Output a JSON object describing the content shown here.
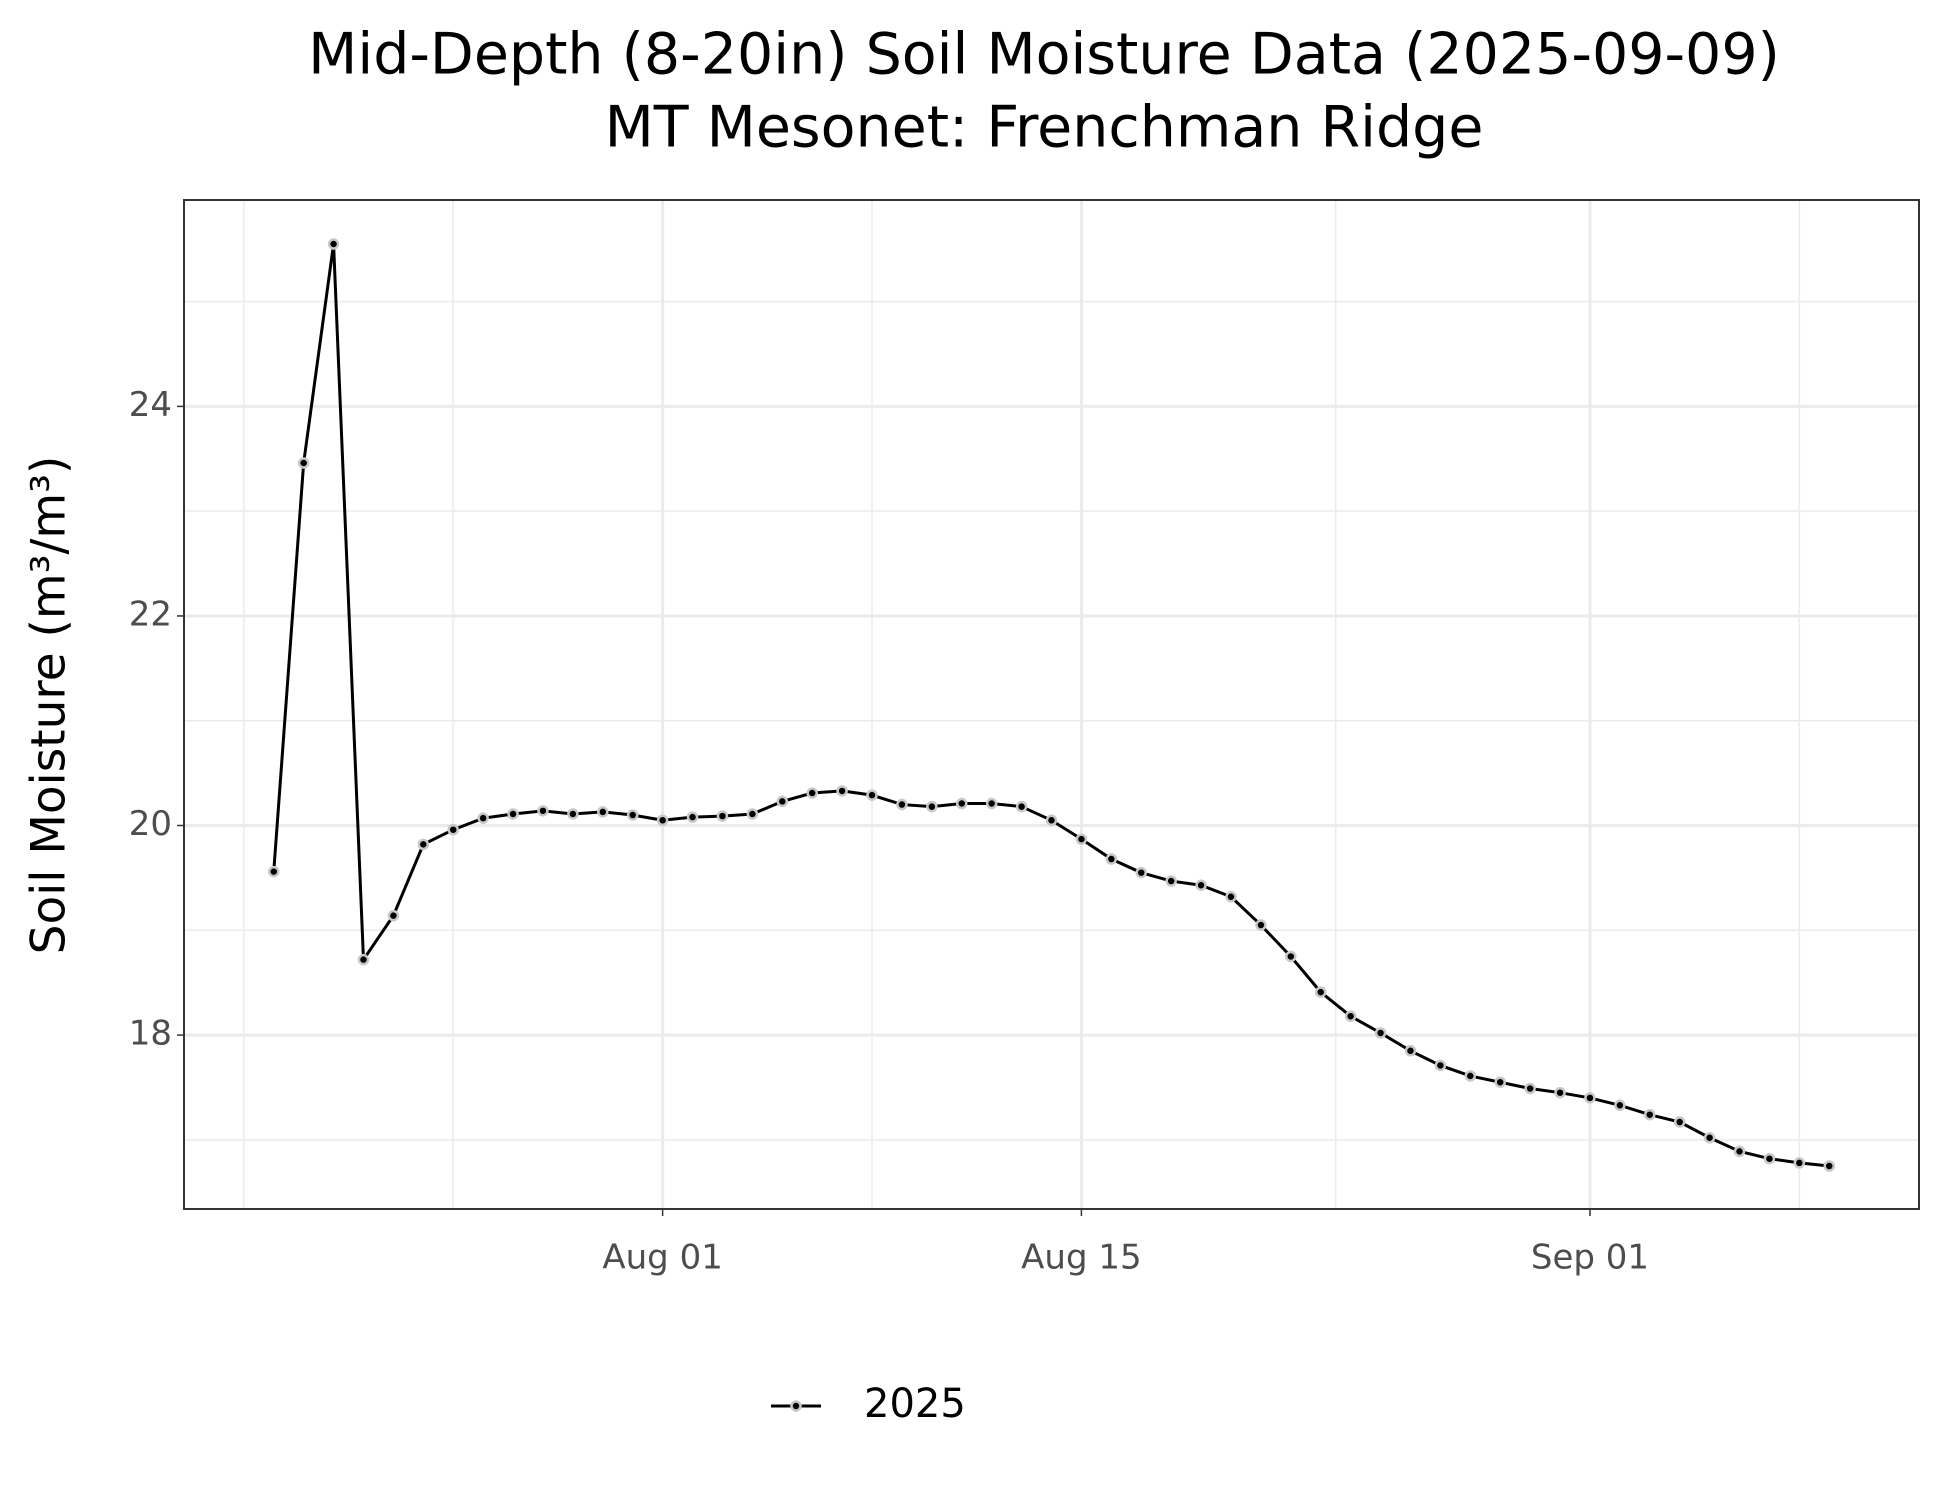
{
  "chart_data": {
    "type": "line",
    "title": "Mid-Depth (8-20in) Soil Moisture Data (2025-09-09)",
    "subtitle": "MT Mesonet: Frenchman Ridge",
    "y_label": "Soil Moisture (m³/m³)",
    "x": [
      "07-19",
      "07-20",
      "07-21",
      "07-22",
      "07-23",
      "07-24",
      "07-25",
      "07-26",
      "07-27",
      "07-28",
      "07-29",
      "07-30",
      "07-31",
      "08-01",
      "08-02",
      "08-03",
      "08-04",
      "08-05",
      "08-06",
      "08-07",
      "08-08",
      "08-09",
      "08-10",
      "08-11",
      "08-12",
      "08-13",
      "08-14",
      "08-15",
      "08-16",
      "08-17",
      "08-18",
      "08-19",
      "08-20",
      "08-21",
      "08-22",
      "08-23",
      "08-24",
      "08-25",
      "08-26",
      "08-27",
      "08-28",
      "08-29",
      "08-30",
      "08-31",
      "09-01",
      "09-02",
      "09-03",
      "09-04",
      "09-05",
      "09-06",
      "09-07",
      "09-08",
      "09-09"
    ],
    "series": [
      {
        "name": "2025",
        "color": "#000000",
        "values": [
          19.56,
          23.46,
          25.55,
          18.72,
          19.14,
          19.82,
          19.96,
          20.07,
          20.11,
          20.14,
          20.11,
          20.13,
          20.1,
          20.05,
          20.08,
          20.09,
          20.11,
          20.23,
          20.31,
          20.33,
          20.29,
          20.2,
          20.18,
          20.21,
          20.21,
          20.18,
          20.05,
          19.87,
          19.68,
          19.55,
          19.47,
          19.43,
          19.32,
          19.05,
          18.75,
          18.41,
          18.18,
          18.02,
          17.85,
          17.71,
          17.61,
          17.55,
          17.49,
          17.45,
          17.4,
          17.33,
          17.24,
          17.17,
          17.02,
          16.89,
          16.82,
          16.78,
          16.75
        ]
      }
    ],
    "xlim": [
      "07-16",
      "09-12"
    ],
    "xticks": [
      {
        "value": "08-01",
        "label": "Aug 01"
      },
      {
        "value": "08-15",
        "label": "Aug 15"
      },
      {
        "value": "09-01",
        "label": "Sep 01"
      }
    ],
    "ylim": [
      16.34,
      25.97
    ],
    "yticks": [
      18,
      20,
      22,
      24
    ],
    "grid": true,
    "legend": "bottom"
  }
}
